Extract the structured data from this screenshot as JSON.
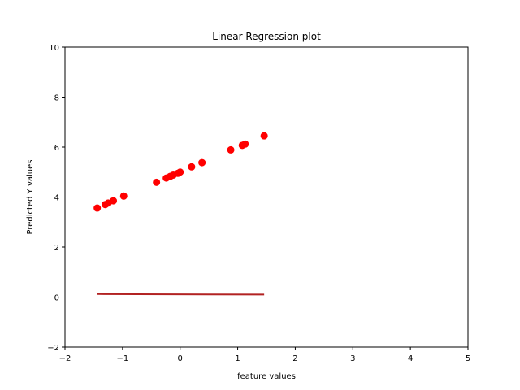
{
  "chart_data": {
    "type": "scatter",
    "title": "Linear Regression plot",
    "xlabel": "feature values",
    "ylabel": "Predicted Y values",
    "xlim": [
      -2,
      5
    ],
    "ylim": [
      -2,
      10
    ],
    "xticks": [
      "−2",
      "−1",
      "0",
      "1",
      "2",
      "3",
      "4",
      "5"
    ],
    "yticks": [
      "−2",
      "0",
      "2",
      "4",
      "6",
      "8",
      "10"
    ],
    "grid": false,
    "series": [
      {
        "kind": "scatter",
        "color": "#ff0000",
        "points": [
          [
            -1.44,
            3.56
          ],
          [
            -1.3,
            3.7
          ],
          [
            -1.25,
            3.76
          ],
          [
            -1.16,
            3.85
          ],
          [
            -0.98,
            4.04
          ],
          [
            -0.41,
            4.59
          ],
          [
            -0.24,
            4.76
          ],
          [
            -0.17,
            4.83
          ],
          [
            -0.12,
            4.88
          ],
          [
            -0.04,
            4.95
          ],
          [
            0.0,
            5.0
          ],
          [
            0.2,
            5.21
          ],
          [
            0.38,
            5.38
          ],
          [
            0.88,
            5.89
          ],
          [
            1.08,
            6.07
          ],
          [
            1.13,
            6.12
          ],
          [
            1.46,
            6.45
          ]
        ]
      },
      {
        "kind": "line",
        "color": "#b22222",
        "points": [
          [
            -1.44,
            0.12
          ],
          [
            1.46,
            0.1
          ]
        ]
      }
    ]
  }
}
